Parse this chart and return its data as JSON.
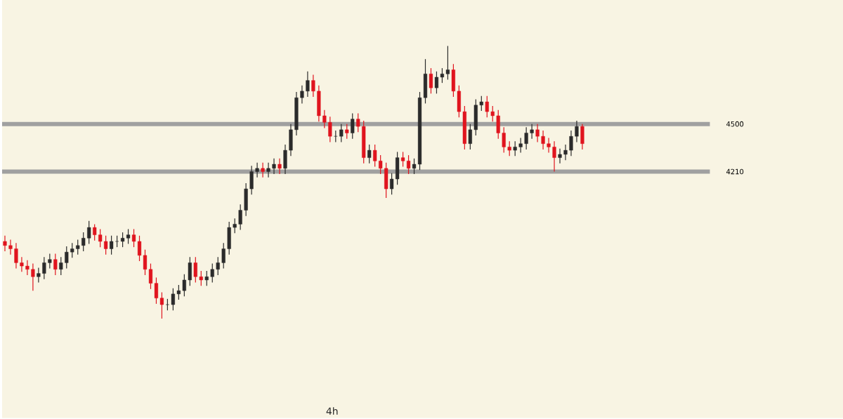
{
  "chart_data": {
    "type": "candlestick",
    "title": "4h",
    "categories": [
      null,
      null,
      null,
      null,
      null,
      null,
      null,
      null,
      null,
      null,
      null,
      null,
      null,
      null,
      null,
      null,
      null,
      null,
      null,
      null,
      null,
      null,
      null,
      null,
      null,
      null,
      null,
      null,
      null,
      null,
      null,
      null,
      null,
      null,
      null,
      null,
      null,
      null,
      null,
      null,
      null,
      null,
      null,
      null,
      null,
      null,
      null,
      null,
      null,
      null,
      null,
      null,
      null,
      null,
      null,
      null,
      null,
      null,
      null,
      null,
      null,
      null,
      null,
      null,
      null,
      null,
      null,
      null,
      null,
      null,
      null,
      null,
      null,
      null,
      null,
      null,
      null,
      null,
      null,
      null,
      null,
      null,
      null,
      null,
      null,
      null,
      null,
      null,
      null,
      null,
      null,
      null,
      null,
      null,
      null,
      null,
      null,
      null,
      null,
      null,
      null,
      null,
      null,
      null,
      null,
      null,
      null,
      null,
      null,
      null,
      null,
      null,
      null,
      null,
      null,
      null,
      null,
      null,
      null,
      null,
      null,
      null,
      null,
      null,
      null,
      null,
      null,
      null,
      null,
      null,
      null,
      null,
      null,
      null,
      null,
      null,
      null,
      null,
      null,
      null,
      null,
      null,
      null,
      null,
      null,
      null,
      null,
      null,
      null,
      null
    ],
    "ohlc": [
      [
        3785,
        3820,
        3725,
        3760
      ],
      [
        3760,
        3795,
        3705,
        3740
      ],
      [
        3740,
        3775,
        3620,
        3655
      ],
      [
        3655,
        3690,
        3600,
        3635
      ],
      [
        3635,
        3670,
        3580,
        3615
      ],
      [
        3615,
        3650,
        3485,
        3570
      ],
      [
        3570,
        3625,
        3535,
        3590
      ],
      [
        3590,
        3690,
        3555,
        3655
      ],
      [
        3655,
        3710,
        3620,
        3675
      ],
      [
        3675,
        3710,
        3580,
        3615
      ],
      [
        3615,
        3690,
        3580,
        3655
      ],
      [
        3655,
        3755,
        3620,
        3720
      ],
      [
        3720,
        3775,
        3685,
        3740
      ],
      [
        3740,
        3795,
        3705,
        3760
      ],
      [
        3760,
        3840,
        3725,
        3805
      ],
      [
        3805,
        3910,
        3770,
        3870
      ],
      [
        3870,
        3890,
        3790,
        3825
      ],
      [
        3825,
        3860,
        3750,
        3785
      ],
      [
        3785,
        3820,
        3705,
        3740
      ],
      [
        3740,
        3820,
        3705,
        3785
      ],
      [
        3785,
        3820,
        3750,
        3785
      ],
      [
        3785,
        3840,
        3750,
        3805
      ],
      [
        3805,
        3860,
        3770,
        3825
      ],
      [
        3825,
        3860,
        3750,
        3785
      ],
      [
        3785,
        3820,
        3665,
        3700
      ],
      [
        3700,
        3735,
        3580,
        3615
      ],
      [
        3615,
        3650,
        3495,
        3530
      ],
      [
        3530,
        3565,
        3405,
        3440
      ],
      [
        3440,
        3475,
        3315,
        3400
      ],
      [
        3400,
        3435,
        3365,
        3400
      ],
      [
        3400,
        3500,
        3365,
        3465
      ],
      [
        3465,
        3520,
        3430,
        3485
      ],
      [
        3485,
        3585,
        3450,
        3550
      ],
      [
        3550,
        3690,
        3515,
        3655
      ],
      [
        3655,
        3690,
        3535,
        3570
      ],
      [
        3570,
        3605,
        3515,
        3550
      ],
      [
        3550,
        3605,
        3515,
        3570
      ],
      [
        3570,
        3650,
        3535,
        3615
      ],
      [
        3615,
        3690,
        3580,
        3655
      ],
      [
        3655,
        3775,
        3620,
        3740
      ],
      [
        3740,
        3905,
        3705,
        3870
      ],
      [
        3870,
        3925,
        3835,
        3890
      ],
      [
        3890,
        4010,
        3855,
        3975
      ],
      [
        3975,
        4140,
        3940,
        4105
      ],
      [
        4105,
        4245,
        4070,
        4210
      ],
      [
        4210,
        4265,
        4175,
        4230
      ],
      [
        4230,
        4265,
        4175,
        4210
      ],
      [
        4210,
        4265,
        4175,
        4230
      ],
      [
        4230,
        4290,
        4195,
        4255
      ],
      [
        4255,
        4290,
        4195,
        4230
      ],
      [
        4230,
        4375,
        4195,
        4340
      ],
      [
        4340,
        4500,
        4305,
        4465
      ],
      [
        4465,
        4695,
        4430,
        4660
      ],
      [
        4660,
        4735,
        4625,
        4700
      ],
      [
        4700,
        4820,
        4665,
        4765
      ],
      [
        4765,
        4800,
        4665,
        4700
      ],
      [
        4700,
        4735,
        4515,
        4550
      ],
      [
        4550,
        4585,
        4475,
        4510
      ],
      [
        4510,
        4545,
        4390,
        4425
      ],
      [
        4425,
        4460,
        4390,
        4425
      ],
      [
        4425,
        4500,
        4390,
        4465
      ],
      [
        4465,
        4500,
        4410,
        4445
      ],
      [
        4445,
        4565,
        4410,
        4530
      ],
      [
        4530,
        4565,
        4450,
        4485
      ],
      [
        4485,
        4520,
        4260,
        4295
      ],
      [
        4295,
        4375,
        4260,
        4340
      ],
      [
        4340,
        4375,
        4240,
        4275
      ],
      [
        4275,
        4310,
        4195,
        4230
      ],
      [
        4230,
        4265,
        4050,
        4105
      ],
      [
        4105,
        4200,
        4070,
        4165
      ],
      [
        4165,
        4330,
        4130,
        4295
      ],
      [
        4295,
        4330,
        4240,
        4275
      ],
      [
        4275,
        4310,
        4195,
        4230
      ],
      [
        4230,
        4290,
        4195,
        4255
      ],
      [
        4255,
        4695,
        4220,
        4660
      ],
      [
        4660,
        4895,
        4625,
        4805
      ],
      [
        4805,
        4840,
        4685,
        4720
      ],
      [
        4720,
        4820,
        4685,
        4785
      ],
      [
        4785,
        4840,
        4750,
        4805
      ],
      [
        4805,
        4975,
        4770,
        4830
      ],
      [
        4830,
        4865,
        4665,
        4700
      ],
      [
        4700,
        4735,
        4540,
        4575
      ],
      [
        4575,
        4610,
        4345,
        4380
      ],
      [
        4380,
        4500,
        4345,
        4465
      ],
      [
        4465,
        4650,
        4430,
        4615
      ],
      [
        4615,
        4670,
        4580,
        4635
      ],
      [
        4635,
        4670,
        4540,
        4575
      ],
      [
        4575,
        4610,
        4515,
        4550
      ],
      [
        4550,
        4585,
        4410,
        4445
      ],
      [
        4445,
        4480,
        4325,
        4360
      ],
      [
        4360,
        4395,
        4305,
        4340
      ],
      [
        4340,
        4395,
        4305,
        4360
      ],
      [
        4360,
        4415,
        4325,
        4380
      ],
      [
        4380,
        4480,
        4345,
        4445
      ],
      [
        4445,
        4500,
        4410,
        4465
      ],
      [
        4465,
        4500,
        4390,
        4425
      ],
      [
        4425,
        4460,
        4345,
        4380
      ],
      [
        4380,
        4415,
        4325,
        4360
      ],
      [
        4360,
        4395,
        4210,
        4295
      ],
      [
        4295,
        4350,
        4260,
        4315
      ],
      [
        4315,
        4375,
        4280,
        4340
      ],
      [
        4340,
        4460,
        4305,
        4425
      ],
      [
        4425,
        4520,
        4390,
        4485
      ],
      [
        4485,
        4500,
        4345,
        4380
      ],
      null,
      null,
      null,
      null,
      null,
      null,
      null,
      null,
      null,
      null,
      null,
      null,
      null,
      null,
      null,
      null,
      null,
      null,
      null,
      null,
      null,
      null,
      null,
      null,
      null,
      null,
      null,
      null,
      null,
      null,
      null,
      null,
      null,
      null,
      null,
      null,
      null,
      null,
      null,
      null,
      null,
      null,
      null,
      null,
      null,
      null
    ],
    "ylim": [
      2710,
      5255
    ],
    "yticks": [
      4210,
      4500
    ],
    "tick_labels": "y",
    "ref_lines": [
      {
        "axis": "y",
        "value": 4500,
        "color": "#a0a0a0"
      },
      {
        "axis": "y",
        "value": 4210,
        "color": "#a0a0a0"
      }
    ]
  }
}
